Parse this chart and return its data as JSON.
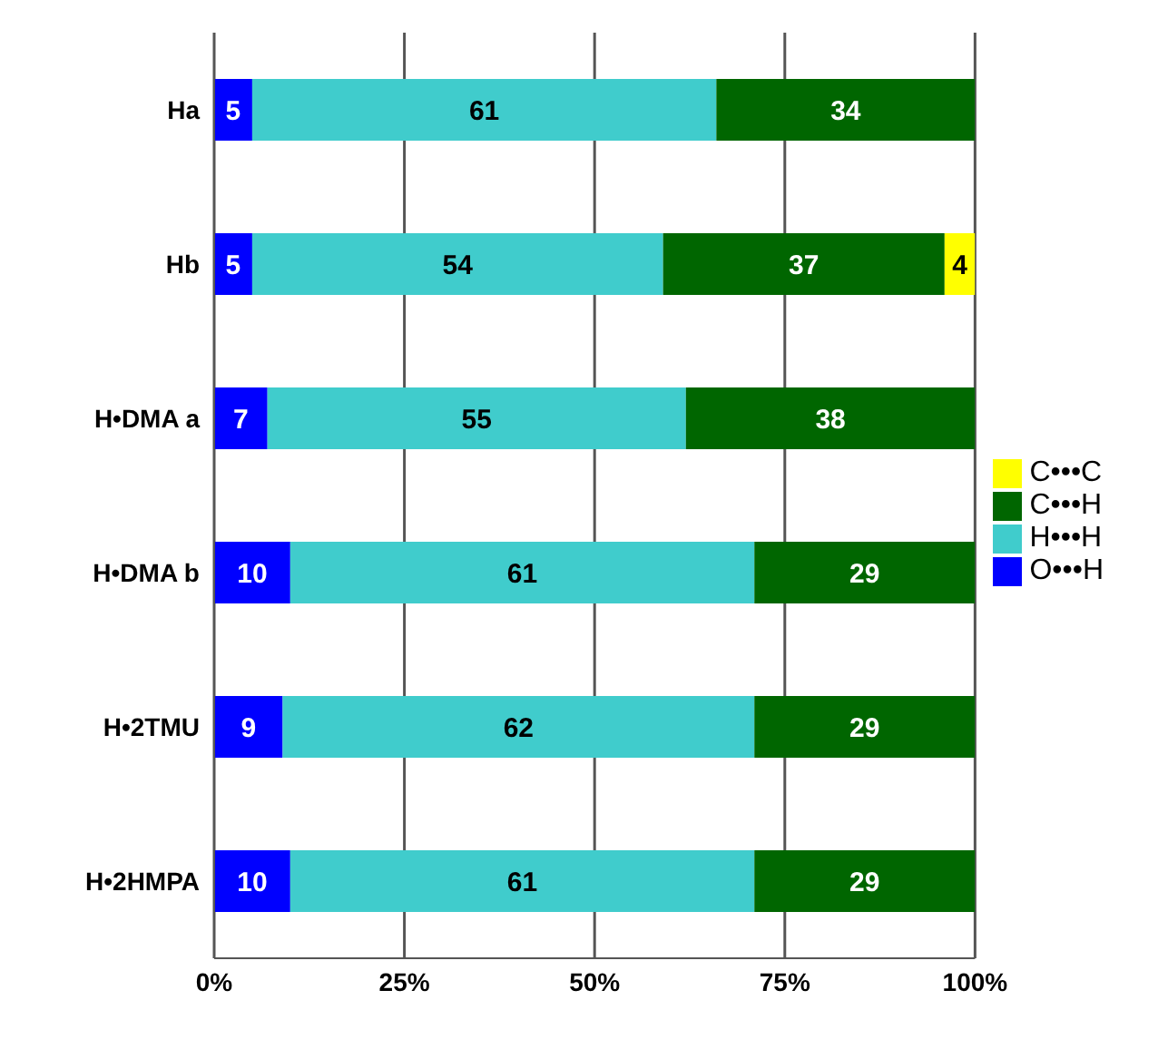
{
  "chart_data": {
    "type": "bar",
    "orientation": "horizontal",
    "stacked": true,
    "categories": [
      "Ha",
      "Hb",
      "H•DMA a",
      "H•DMA b",
      "H•2TMU",
      "H•2HMPA"
    ],
    "series": [
      {
        "name": "O•••H",
        "color": "#0000ff",
        "values": [
          5,
          5,
          7,
          10,
          9,
          10
        ]
      },
      {
        "name": "H•••H",
        "color": "#40cccc",
        "values": [
          61,
          54,
          55,
          61,
          62,
          61
        ]
      },
      {
        "name": "C•••H",
        "color": "#006600",
        "values": [
          34,
          37,
          38,
          29,
          29,
          29
        ]
      },
      {
        "name": "C•••C",
        "color": "#ffff00",
        "values": [
          null,
          4,
          null,
          null,
          null,
          null
        ]
      }
    ],
    "xlim": [
      0,
      100
    ],
    "xticks": [
      {
        "value": 0,
        "label": "0%"
      },
      {
        "value": 25,
        "label": "25%"
      },
      {
        "value": 50,
        "label": "50%"
      },
      {
        "value": 75,
        "label": "75%"
      },
      {
        "value": 100,
        "label": "100%"
      }
    ],
    "grid": "x",
    "legend": "right",
    "data_labels": true
  }
}
